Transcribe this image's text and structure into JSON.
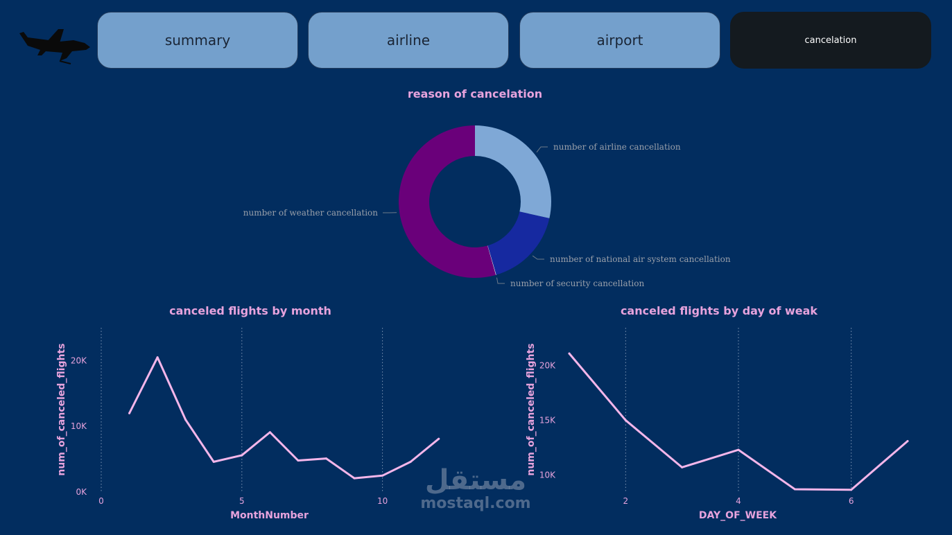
{
  "nav": {
    "tabs": [
      {
        "label": "summary"
      },
      {
        "label": "airline"
      },
      {
        "label": "airport"
      },
      {
        "label": "cancelation",
        "active": true
      }
    ]
  },
  "colors": {
    "background": "#022d5f",
    "tab": "#74a0cc",
    "tab_active": "#141a1f",
    "line": "#f4b6ea",
    "title": "#e7a3dd"
  },
  "watermark": {
    "arabic": "مستقل",
    "latin": "mostaql.com"
  },
  "chart_data": [
    {
      "type": "pie",
      "donut": true,
      "title": "reason of cancelation",
      "slices": [
        {
          "label": "number of airline cancellation",
          "value": 28.5,
          "color": "#7fa8d6"
        },
        {
          "label": "number of national air system cancellation",
          "value": 17.0,
          "color": "#1629a0"
        },
        {
          "label": "number of security cancellation",
          "value": 0.1,
          "color": "#f0f0f0"
        },
        {
          "label": "number of weather cancellation",
          "value": 54.4,
          "color": "#6a007a"
        }
      ]
    },
    {
      "type": "line",
      "title": "canceled flights by month",
      "xlabel": "MonthNumber",
      "ylabel": "num_of_canceled_flights",
      "x": [
        1,
        2,
        3,
        4,
        5,
        6,
        7,
        8,
        9,
        10,
        11,
        12
      ],
      "values": [
        12000,
        20500,
        11000,
        4600,
        5600,
        9100,
        4800,
        5100,
        2100,
        2500,
        4600,
        8100
      ],
      "xlim": [
        0,
        12.5
      ],
      "ylim": [
        0,
        25000
      ],
      "xticks": [
        {
          "v": 0,
          "label": "0"
        },
        {
          "v": 5,
          "label": "5"
        },
        {
          "v": 10,
          "label": "10"
        }
      ],
      "yticks": [
        {
          "v": 0,
          "label": "0K"
        },
        {
          "v": 10000,
          "label": "10K"
        },
        {
          "v": 20000,
          "label": "20K"
        }
      ],
      "xgrid": [
        0,
        5,
        10
      ],
      "color": "#f4b6ea"
    },
    {
      "type": "line",
      "title": "canceled flights by day of weak",
      "xlabel": "DAY_OF_WEEK",
      "ylabel": "num_of_canceled_flights",
      "x": [
        1,
        2,
        3,
        4,
        5,
        6,
        7
      ],
      "values": [
        21100,
        15000,
        10700,
        12300,
        8700,
        8650,
        13100
      ],
      "xlim": [
        1,
        7
      ],
      "ylim": [
        8000,
        22500
      ],
      "xticks": [
        {
          "v": 2,
          "label": "2"
        },
        {
          "v": 4,
          "label": "4"
        },
        {
          "v": 6,
          "label": "6"
        }
      ],
      "yticks": [
        {
          "v": 10000,
          "label": "10K"
        },
        {
          "v": 15000,
          "label": "15K"
        },
        {
          "v": 20000,
          "label": "20K"
        }
      ],
      "xgrid": [
        2,
        4,
        6
      ],
      "color": "#f4b6ea"
    }
  ]
}
